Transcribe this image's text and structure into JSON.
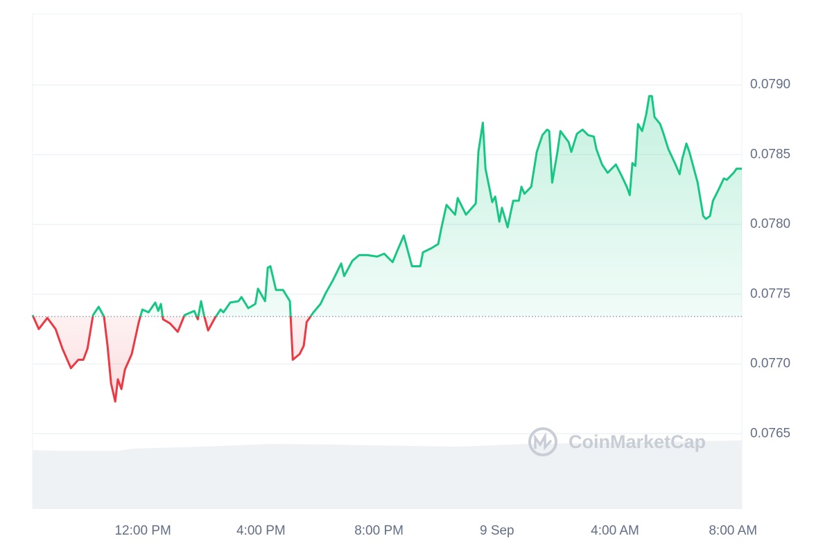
{
  "chart_data": {
    "type": "line",
    "x": [
      8.26,
      8.47,
      8.76,
      9.04,
      9.27,
      9.56,
      9.81,
      9.98,
      10.12,
      10.31,
      10.5,
      10.68,
      10.8,
      10.92,
      11.06,
      11.15,
      11.27,
      11.39,
      11.62,
      11.86,
      11.98,
      12.19,
      12.42,
      12.52,
      12.61,
      12.68,
      12.92,
      13.18,
      13.41,
      13.74,
      13.86,
      13.97,
      14.07,
      14.21,
      14.44,
      14.63,
      14.73,
      14.96,
      15.24,
      15.34,
      15.57,
      15.81,
      15.9,
      16.14,
      16.23,
      16.32,
      16.51,
      16.75,
      16.98,
      17.08,
      17.31,
      17.45,
      17.55,
      17.78,
      18.02,
      18.2,
      18.44,
      18.72,
      18.82,
      19.1,
      19.33,
      19.61,
      19.94,
      20.18,
      20.46,
      20.6,
      20.84,
      21.12,
      21.4,
      21.49,
      21.78,
      22.01,
      22.11,
      22.29,
      22.58,
      22.67,
      22.95,
      23.28,
      23.37,
      23.52,
      23.61,
      23.84,
      23.94,
      24.08,
      24.17,
      24.36,
      24.55,
      24.74,
      24.83,
      24.93,
      25.16,
      25.35,
      25.54,
      25.7,
      25.77,
      25.87,
      26.05,
      26.15,
      26.43,
      26.52,
      26.71,
      26.9,
      27.09,
      27.28,
      27.37,
      27.56,
      27.75,
      28.03,
      28.22,
      28.4,
      28.5,
      28.59,
      28.69,
      28.78,
      28.92,
      29.06,
      29.16,
      29.25,
      29.34,
      29.53,
      29.63,
      29.81,
      30.05,
      30.19,
      30.28,
      30.42,
      30.52,
      30.8,
      30.99,
      31.08,
      31.22,
      31.32,
      31.51,
      31.69,
      31.79,
      32.02,
      32.12,
      32.3
    ],
    "values": [
      0.07735,
      0.07725,
      0.07733,
      0.07725,
      0.07711,
      0.07697,
      0.07703,
      0.07703,
      0.07711,
      0.07735,
      0.07741,
      0.07734,
      0.07713,
      0.07686,
      0.07673,
      0.07689,
      0.07682,
      0.07696,
      0.07707,
      0.0773,
      0.07739,
      0.07737,
      0.07744,
      0.07738,
      0.07743,
      0.07732,
      0.07729,
      0.07723,
      0.07735,
      0.07738,
      0.07732,
      0.07745,
      0.07735,
      0.07724,
      0.07733,
      0.07739,
      0.07737,
      0.07744,
      0.07745,
      0.07748,
      0.0774,
      0.07743,
      0.07754,
      0.07745,
      0.07769,
      0.0777,
      0.07753,
      0.07753,
      0.07745,
      0.07703,
      0.07707,
      0.07713,
      0.0773,
      0.07737,
      0.07743,
      0.07751,
      0.0776,
      0.07772,
      0.07763,
      0.07774,
      0.07778,
      0.07778,
      0.07777,
      0.07779,
      0.07773,
      0.0778,
      0.07792,
      0.0777,
      0.0777,
      0.0778,
      0.07783,
      0.07786,
      0.07797,
      0.07814,
      0.07807,
      0.07819,
      0.07807,
      0.07815,
      0.07852,
      0.07873,
      0.0784,
      0.07816,
      0.0782,
      0.07802,
      0.07812,
      0.07798,
      0.07817,
      0.07817,
      0.07827,
      0.07822,
      0.07827,
      0.07852,
      0.07864,
      0.07868,
      0.07867,
      0.0783,
      0.07852,
      0.07867,
      0.07859,
      0.07852,
      0.07865,
      0.07868,
      0.07864,
      0.07863,
      0.07854,
      0.07843,
      0.07837,
      0.07843,
      0.07835,
      0.07827,
      0.07821,
      0.07844,
      0.07842,
      0.07872,
      0.07867,
      0.07879,
      0.07892,
      0.07892,
      0.07877,
      0.07872,
      0.07866,
      0.07854,
      0.07843,
      0.07836,
      0.07847,
      0.07858,
      0.07852,
      0.0783,
      0.07806,
      0.07804,
      0.07806,
      0.07817,
      0.07825,
      0.07833,
      0.07832,
      0.07837,
      0.0784,
      0.0784
    ],
    "baseline": 0.07734,
    "colors": {
      "above": "#16c784",
      "below": "#ea3943"
    },
    "xlim": [
      8.26,
      32.3
    ],
    "ylim": [
      0.07596,
      0.07951
    ],
    "yticks": [
      {
        "value": 0.0765,
        "label": "0.0765"
      },
      {
        "value": 0.077,
        "label": "0.0770"
      },
      0.0775,
      {
        "value": 0.078,
        "label": "0.0780"
      },
      0.0785,
      {
        "value": 0.079,
        "label": "0.0790"
      }
    ],
    "xticks": [
      {
        "value": 12,
        "label": "12:00 PM"
      },
      {
        "value": 16,
        "label": "4:00 PM"
      },
      {
        "value": 20,
        "label": "8:00 PM"
      },
      {
        "value": 24,
        "label": "9 Sep"
      },
      {
        "value": 28,
        "label": "4:00 AM"
      },
      {
        "value": 32,
        "label": "8:00 AM"
      }
    ],
    "grid": true,
    "watermark": "CoinMarketCap"
  }
}
